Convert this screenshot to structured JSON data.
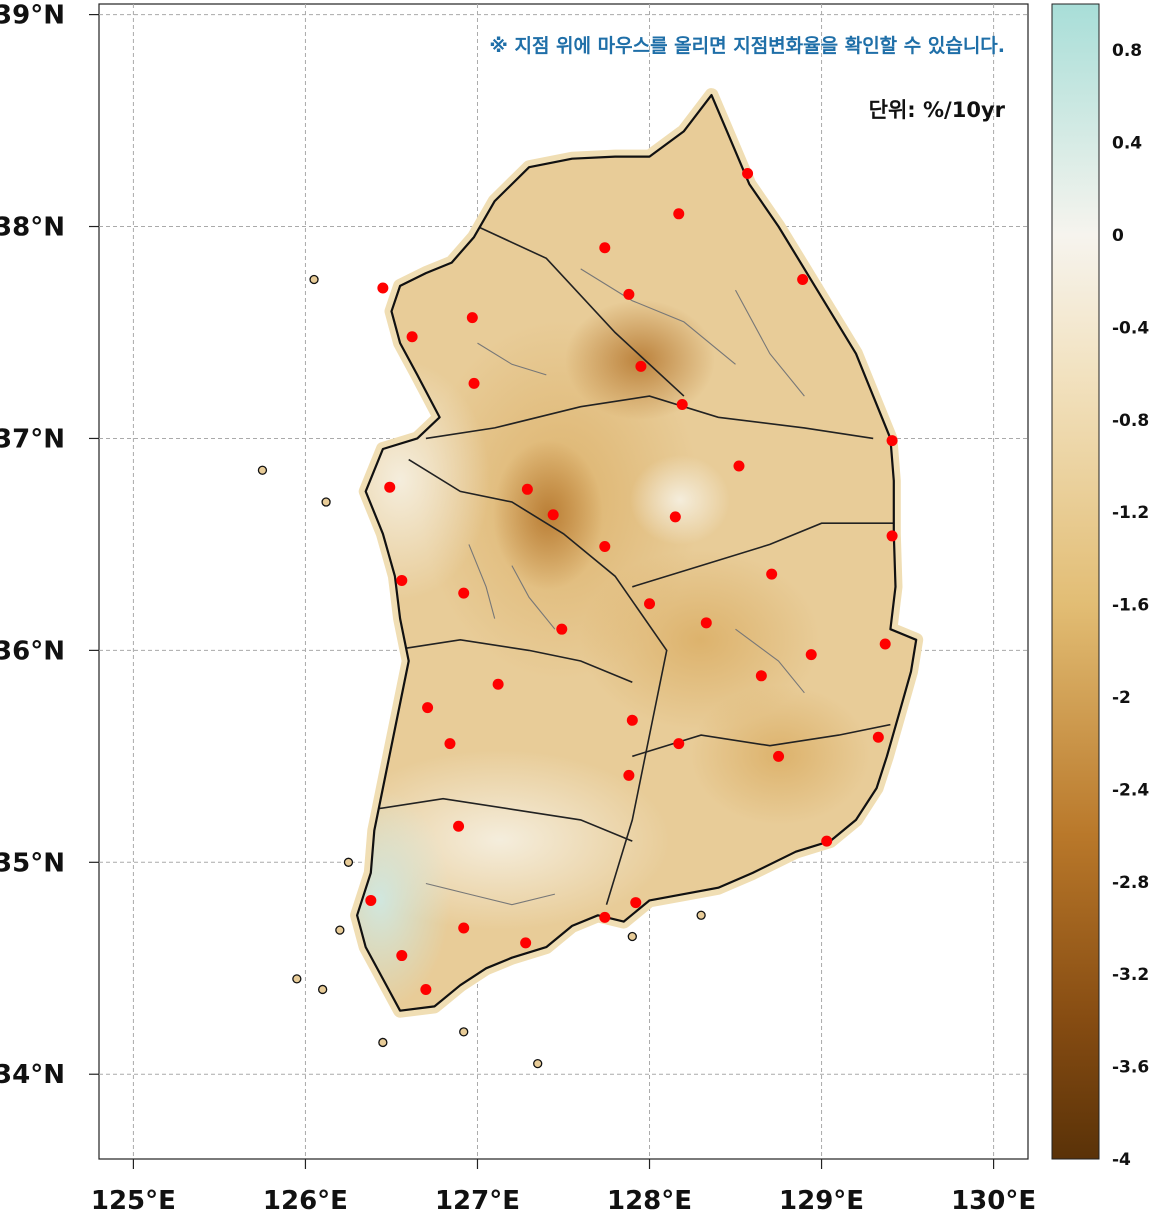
{
  "map": {
    "notice": "※ 지점 위에 마우스를 올리면 지점변화율을 확인할 수 있습니다.",
    "unit": "단위: %/10yr",
    "lat_ticks": [
      "34°N",
      "35°N",
      "36°N",
      "37°N",
      "38°N",
      "39°N"
    ],
    "lon_ticks": [
      "125°E",
      "126°E",
      "127°E",
      "128°E",
      "129°E",
      "130°E"
    ],
    "lat_values": [
      34,
      35,
      36,
      37,
      38,
      39
    ],
    "lon_values": [
      125,
      126,
      127,
      128,
      129,
      130
    ],
    "lon_range": [
      124.8,
      130.2
    ],
    "lat_range": [
      33.6,
      39.05
    ],
    "colors": {
      "station": "#ff0000",
      "grid": "#aaaaaa",
      "border": "#111111",
      "land": "#e8cc98"
    }
  },
  "colorbar": {
    "labels": [
      "0.8",
      "0.4",
      "0",
      "-0.4",
      "-0.8",
      "-1.2",
      "-1.6",
      "-2",
      "-2.4",
      "-2.8",
      "-3.2",
      "-3.6",
      "-4"
    ],
    "values": [
      0.8,
      0.4,
      0,
      -0.4,
      -0.8,
      -1.2,
      -1.6,
      -2,
      -2.4,
      -2.8,
      -3.2,
      -3.6,
      -4
    ],
    "range": [
      -4,
      1
    ],
    "stops": [
      {
        "v": 1.0,
        "c": "#a8ded8"
      },
      {
        "v": 0.0,
        "c": "#f6f4ee"
      },
      {
        "v": -0.6,
        "c": "#f2e2c0"
      },
      {
        "v": -1.6,
        "c": "#e2bd74"
      },
      {
        "v": -2.6,
        "c": "#b9782a"
      },
      {
        "v": -3.4,
        "c": "#864c12"
      },
      {
        "v": -4.0,
        "c": "#5a3208"
      }
    ]
  },
  "stations": [
    {
      "lon": 126.45,
      "lat": 37.71
    },
    {
      "lon": 126.62,
      "lat": 37.48
    },
    {
      "lon": 126.97,
      "lat": 37.57
    },
    {
      "lon": 126.98,
      "lat": 37.26
    },
    {
      "lon": 127.74,
      "lat": 37.9
    },
    {
      "lon": 127.88,
      "lat": 37.68
    },
    {
      "lon": 128.17,
      "lat": 38.06
    },
    {
      "lon": 128.57,
      "lat": 38.25
    },
    {
      "lon": 128.89,
      "lat": 37.75
    },
    {
      "lon": 127.95,
      "lat": 37.34
    },
    {
      "lon": 128.19,
      "lat": 37.16
    },
    {
      "lon": 129.41,
      "lat": 36.99
    },
    {
      "lon": 128.52,
      "lat": 36.87
    },
    {
      "lon": 126.49,
      "lat": 36.77
    },
    {
      "lon": 127.29,
      "lat": 36.76
    },
    {
      "lon": 127.44,
      "lat": 36.64
    },
    {
      "lon": 128.15,
      "lat": 36.63
    },
    {
      "lon": 127.74,
      "lat": 36.49
    },
    {
      "lon": 129.41,
      "lat": 36.54
    },
    {
      "lon": 126.56,
      "lat": 36.33
    },
    {
      "lon": 128.71,
      "lat": 36.36
    },
    {
      "lon": 126.92,
      "lat": 36.27
    },
    {
      "lon": 128.0,
      "lat": 36.22
    },
    {
      "lon": 127.49,
      "lat": 36.1
    },
    {
      "lon": 128.33,
      "lat": 36.13
    },
    {
      "lon": 129.37,
      "lat": 36.03
    },
    {
      "lon": 128.94,
      "lat": 35.98
    },
    {
      "lon": 128.65,
      "lat": 35.88
    },
    {
      "lon": 127.12,
      "lat": 35.84
    },
    {
      "lon": 126.71,
      "lat": 35.73
    },
    {
      "lon": 127.9,
      "lat": 35.67
    },
    {
      "lon": 126.84,
      "lat": 35.56
    },
    {
      "lon": 128.17,
      "lat": 35.56
    },
    {
      "lon": 129.33,
      "lat": 35.59
    },
    {
      "lon": 128.75,
      "lat": 35.5
    },
    {
      "lon": 127.88,
      "lat": 35.41
    },
    {
      "lon": 126.89,
      "lat": 35.17
    },
    {
      "lon": 129.03,
      "lat": 35.1
    },
    {
      "lon": 126.38,
      "lat": 34.82
    },
    {
      "lon": 127.92,
      "lat": 34.81
    },
    {
      "lon": 127.74,
      "lat": 34.74
    },
    {
      "lon": 126.92,
      "lat": 34.69
    },
    {
      "lon": 127.28,
      "lat": 34.62
    },
    {
      "lon": 126.56,
      "lat": 34.56
    },
    {
      "lon": 126.7,
      "lat": 34.4
    }
  ]
}
